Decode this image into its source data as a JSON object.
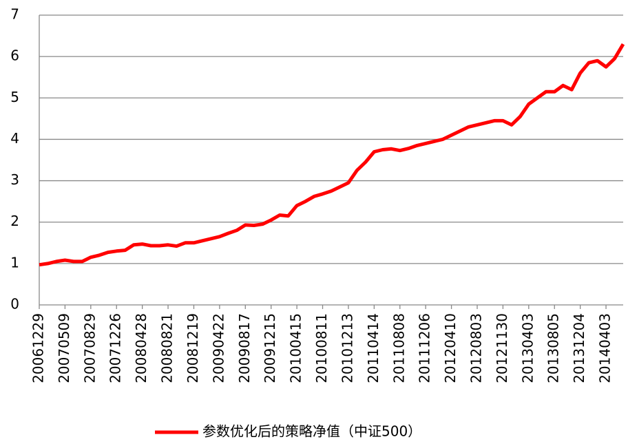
{
  "chart_data": {
    "type": "line",
    "categories": [
      "20061229",
      null,
      null,
      "20070509",
      null,
      null,
      "20070829",
      null,
      null,
      "20071226",
      null,
      null,
      "20080428",
      null,
      null,
      "20080821",
      null,
      null,
      "20081219",
      null,
      null,
      "20090422",
      null,
      null,
      "20090817",
      null,
      null,
      "20091215",
      null,
      null,
      "20100415",
      null,
      null,
      "20100811",
      null,
      null,
      "20101213",
      null,
      null,
      "20110414",
      null,
      null,
      "20110808",
      null,
      null,
      "20111206",
      null,
      null,
      "20120410",
      null,
      null,
      "20120803",
      null,
      null,
      "20121130",
      null,
      null,
      "20130403",
      null,
      null,
      "20130805",
      null,
      null,
      "20131204",
      null,
      null,
      "20140403",
      null,
      null
    ],
    "series": [
      {
        "name": "参数优化后的策略净值（中证500）",
        "color": "#ff0000",
        "values": [
          0.97,
          1.0,
          1.05,
          1.08,
          1.05,
          1.05,
          1.15,
          1.2,
          1.27,
          1.3,
          1.32,
          1.45,
          1.47,
          1.43,
          1.43,
          1.45,
          1.42,
          1.5,
          1.5,
          1.55,
          1.6,
          1.65,
          1.73,
          1.8,
          1.93,
          1.92,
          1.95,
          2.05,
          2.17,
          2.15,
          2.4,
          2.5,
          2.62,
          2.68,
          2.75,
          2.85,
          2.95,
          3.25,
          3.45,
          3.7,
          3.75,
          3.77,
          3.73,
          3.78,
          3.85,
          3.9,
          3.95,
          4.0,
          4.1,
          4.2,
          4.3,
          4.35,
          4.4,
          4.45,
          4.45,
          4.35,
          4.55,
          4.85,
          5.0,
          5.15,
          5.15,
          5.3,
          5.2,
          5.6,
          5.85,
          5.9,
          5.75,
          5.95,
          6.3
        ]
      }
    ],
    "ylim": [
      0,
      7
    ],
    "yticks": [
      0,
      1,
      2,
      3,
      4,
      5,
      6,
      7
    ],
    "grid": true,
    "legend": "bottom"
  }
}
